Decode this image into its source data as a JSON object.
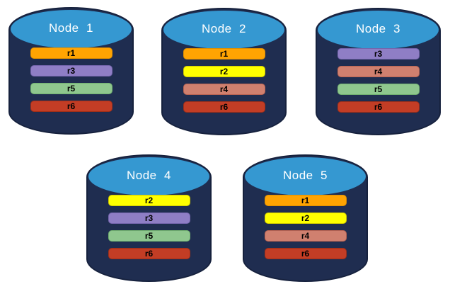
{
  "diagram": {
    "background_color": "#FFFFFF",
    "cylinder": {
      "body_color": "#1F2D50",
      "edge_color": "#16213D",
      "top_color": "#3598D1",
      "label_color": "#FFFFFF"
    },
    "replica_colors": {
      "r1": {
        "fill": "#FFA402",
        "border": "#DE8F00"
      },
      "r2": {
        "fill": "#FFFF00",
        "border": "#CFC900"
      },
      "r3": {
        "fill": "#8F7EC5",
        "border": "#7465AC"
      },
      "r4": {
        "fill": "#D0806F",
        "border": "#BA6452"
      },
      "r5": {
        "fill": "#8FC78E",
        "border": "#71B070"
      },
      "r6": {
        "fill": "#C33D25",
        "border": "#A02F18"
      }
    },
    "nodes": [
      {
        "label": "Node  1",
        "replicas": [
          "r1",
          "r3",
          "r5",
          "r6"
        ]
      },
      {
        "label": "Node  2",
        "replicas": [
          "r1",
          "r2",
          "r4",
          "r6"
        ]
      },
      {
        "label": "Node  3",
        "replicas": [
          "r3",
          "r4",
          "r5",
          "r6"
        ]
      },
      {
        "label": "Node  4",
        "replicas": [
          "r2",
          "r3",
          "r5",
          "r6"
        ]
      },
      {
        "label": "Node  5",
        "replicas": [
          "r1",
          "r2",
          "r4",
          "r6"
        ]
      }
    ]
  }
}
